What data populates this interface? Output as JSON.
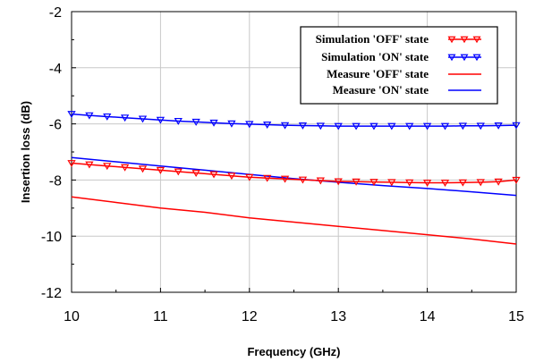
{
  "chart_data": {
    "type": "line",
    "title": "",
    "xlabel": "Frequency (GHz)",
    "ylabel": "Insertion loss (dB)",
    "xlim": [
      10,
      15
    ],
    "ylim": [
      -12,
      -2
    ],
    "xticks": [
      10,
      11,
      12,
      13,
      14,
      15
    ],
    "yticks": [
      -2,
      -4,
      -6,
      -8,
      -10,
      -12
    ],
    "grid": true,
    "legend_position": "top-right",
    "series": [
      {
        "name": "Simulation 'OFF' state",
        "color": "#ff0000",
        "marker": "triangle-down",
        "x": [
          10,
          10.2,
          10.4,
          10.6,
          10.8,
          11,
          11.2,
          11.4,
          11.6,
          11.8,
          12,
          12.2,
          12.4,
          12.6,
          12.8,
          13,
          13.2,
          13.4,
          13.6,
          13.8,
          14,
          14.2,
          14.4,
          14.6,
          14.8,
          15
        ],
        "values": [
          -7.4,
          -7.45,
          -7.5,
          -7.55,
          -7.6,
          -7.65,
          -7.7,
          -7.75,
          -7.8,
          -7.85,
          -7.9,
          -7.93,
          -7.96,
          -7.99,
          -8.02,
          -8.05,
          -8.06,
          -8.07,
          -8.08,
          -8.09,
          -8.1,
          -8.1,
          -8.09,
          -8.08,
          -8.06,
          -8.0
        ]
      },
      {
        "name": "Simulation 'ON' state",
        "color": "#0000ff",
        "marker": "triangle-down",
        "x": [
          10,
          10.2,
          10.4,
          10.6,
          10.8,
          11,
          11.2,
          11.4,
          11.6,
          11.8,
          12,
          12.2,
          12.4,
          12.6,
          12.8,
          13,
          13.2,
          13.4,
          13.6,
          13.8,
          14,
          14.2,
          14.4,
          14.6,
          14.8,
          15
        ],
        "values": [
          -5.65,
          -5.7,
          -5.74,
          -5.78,
          -5.82,
          -5.86,
          -5.9,
          -5.93,
          -5.96,
          -5.99,
          -6.01,
          -6.03,
          -6.05,
          -6.06,
          -6.07,
          -6.08,
          -6.08,
          -6.08,
          -6.08,
          -6.08,
          -6.08,
          -6.08,
          -6.07,
          -6.07,
          -6.06,
          -6.05
        ]
      },
      {
        "name": "Measure 'OFF' state",
        "color": "#ff0000",
        "marker": "none",
        "x": [
          10,
          10.5,
          11,
          11.5,
          12,
          12.5,
          13,
          13.5,
          14,
          14.5,
          15
        ],
        "values": [
          -8.6,
          -8.8,
          -9.0,
          -9.15,
          -9.35,
          -9.5,
          -9.65,
          -9.8,
          -9.95,
          -10.1,
          -10.28
        ]
      },
      {
        "name": "Measure 'ON' state",
        "color": "#0000ff",
        "marker": "none",
        "x": [
          10,
          10.5,
          11,
          11.5,
          12,
          12.5,
          13,
          13.5,
          14,
          14.5,
          15
        ],
        "values": [
          -7.2,
          -7.35,
          -7.5,
          -7.65,
          -7.8,
          -7.95,
          -8.08,
          -8.2,
          -8.3,
          -8.42,
          -8.55
        ]
      }
    ]
  }
}
